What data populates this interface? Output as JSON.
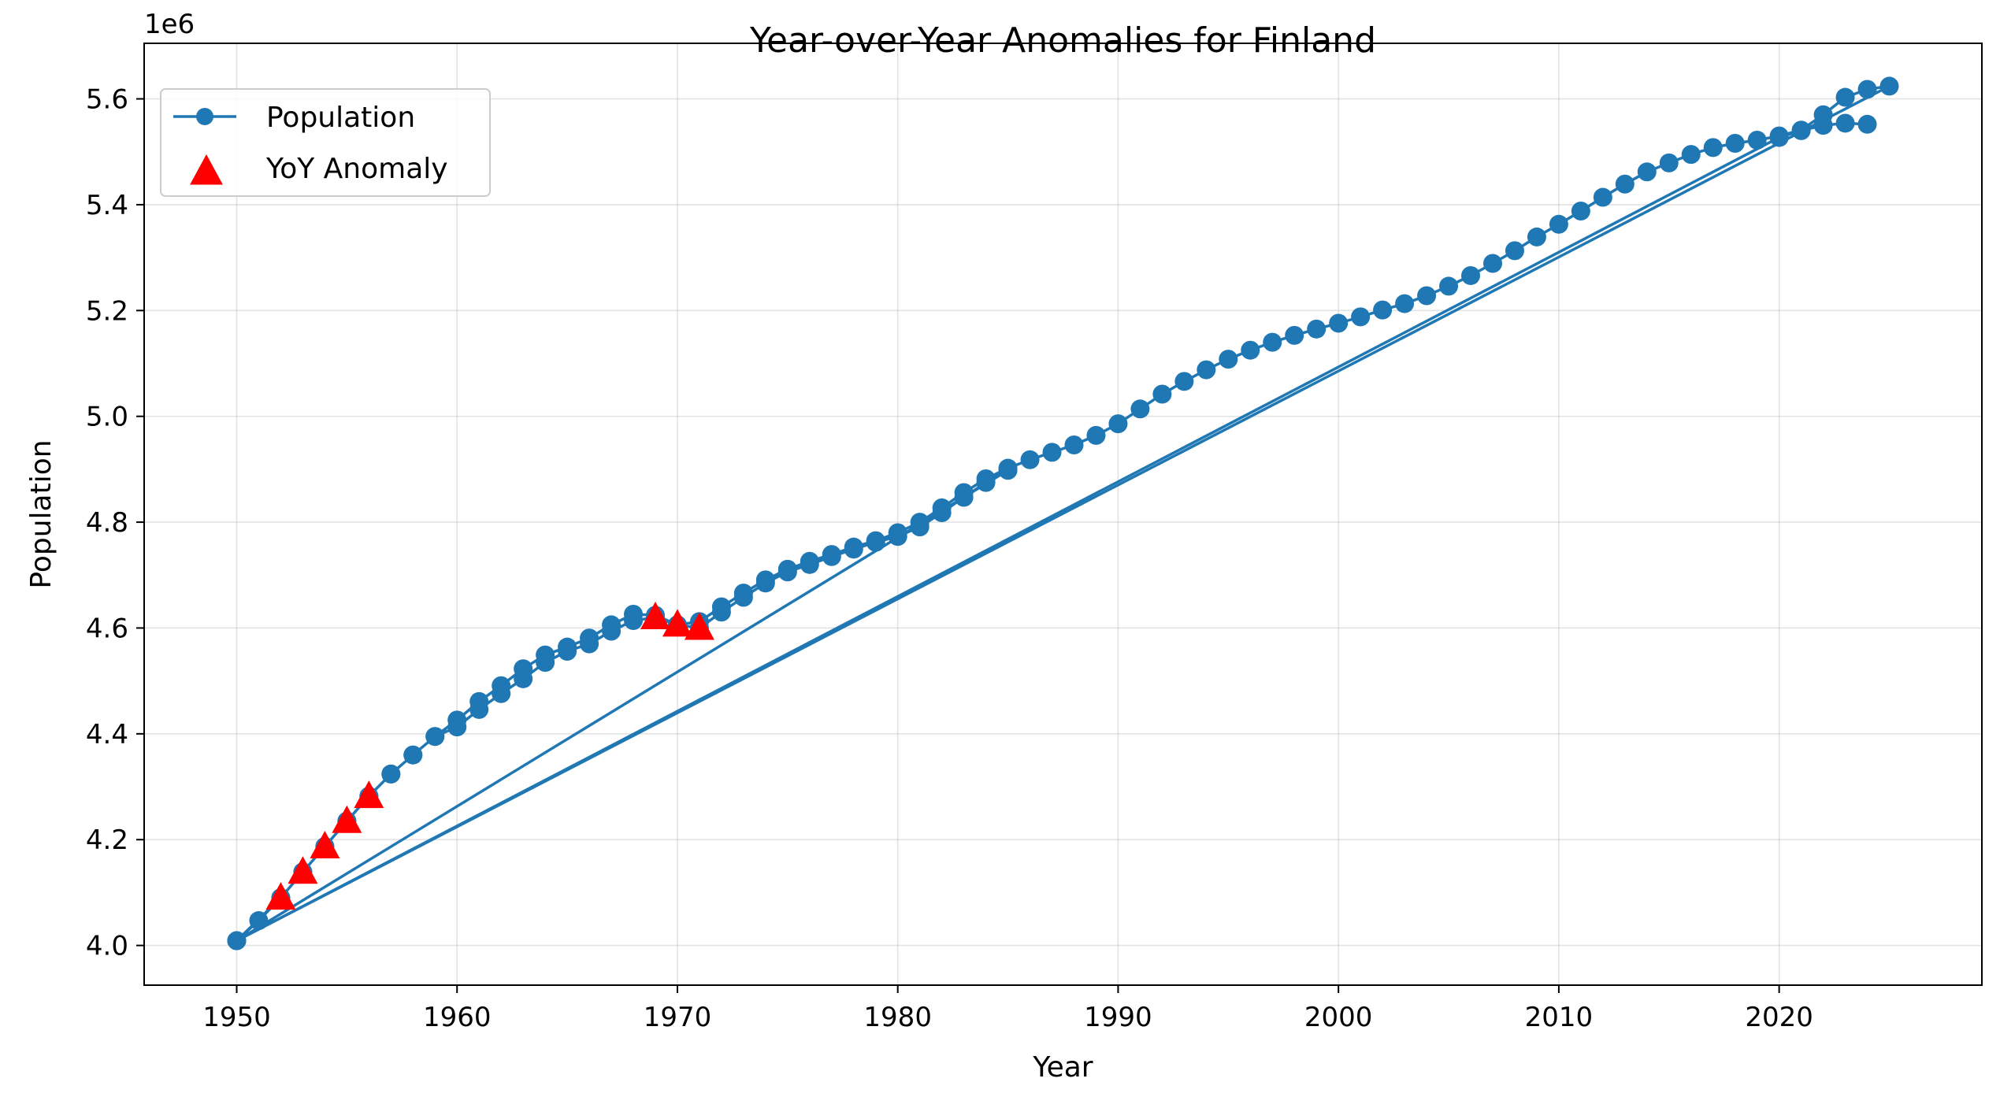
{
  "chart_data": {
    "type": "line",
    "title": "Year-over-Year Anomalies for Finland",
    "xlabel": "Year",
    "ylabel": "Population",
    "y_offset_label": "1e6",
    "xlim": [
      1945.8,
      2029.2
    ],
    "ylim": [
      3925000,
      5705000
    ],
    "grid": true,
    "legend_position": "top-left",
    "x_ticks": [
      1950,
      1960,
      1970,
      1980,
      1990,
      2000,
      2010,
      2020
    ],
    "x_tick_labels": [
      "1950",
      "1960",
      "1970",
      "1980",
      "1990",
      "2000",
      "2010",
      "2020"
    ],
    "y_ticks": [
      4000000,
      4200000,
      4400000,
      4600000,
      4800000,
      5000000,
      5200000,
      5400000,
      5600000
    ],
    "y_tick_labels": [
      "4.0",
      "4.2",
      "4.4",
      "4.6",
      "4.8",
      "5.0",
      "5.2",
      "5.4",
      "5.6"
    ],
    "series": [
      {
        "name": "Population",
        "color": "#1f77b4",
        "mode": "line+markers",
        "points": [
          [
            1950,
            4009000
          ],
          [
            1951,
            4047000
          ],
          [
            1952,
            4090000
          ],
          [
            1953,
            4139000
          ],
          [
            1954,
            4187000
          ],
          [
            1955,
            4235000
          ],
          [
            1956,
            4282000
          ],
          [
            1957,
            4324000
          ],
          [
            1958,
            4360000
          ],
          [
            1959,
            4395000
          ],
          [
            1960,
            4413000
          ],
          [
            1961,
            4446000
          ],
          [
            1962,
            4476000
          ],
          [
            1963,
            4504000
          ],
          [
            1964,
            4535000
          ],
          [
            1965,
            4556000
          ],
          [
            1966,
            4570000
          ],
          [
            1967,
            4594000
          ],
          [
            1968,
            4614000
          ],
          [
            1969,
            4620000
          ],
          [
            1970,
            4606000
          ],
          [
            1971,
            4600000
          ],
          [
            1972,
            4630000
          ],
          [
            1973,
            4658000
          ],
          [
            1974,
            4685000
          ],
          [
            1975,
            4706000
          ],
          [
            1976,
            4720000
          ],
          [
            1977,
            4735000
          ],
          [
            1978,
            4749000
          ],
          [
            1979,
            4762000
          ],
          [
            1980,
            4773000
          ],
          [
            1981,
            4791000
          ],
          [
            1982,
            4818000
          ],
          [
            1983,
            4847000
          ],
          [
            1984,
            4875000
          ],
          [
            1985,
            4898000
          ],
          [
            1950,
            4009000
          ],
          [
            1952,
            4090000
          ],
          [
            1953,
            4139000
          ],
          [
            1954,
            4187000
          ],
          [
            1955,
            4235000
          ],
          [
            1956,
            4282000
          ],
          [
            1957,
            4324000
          ],
          [
            1958,
            4360000
          ],
          [
            1959,
            4395000
          ],
          [
            1960,
            4426000
          ],
          [
            1961,
            4461000
          ],
          [
            1962,
            4491000
          ],
          [
            1963,
            4523000
          ],
          [
            1964,
            4549000
          ],
          [
            1965,
            4564000
          ],
          [
            1966,
            4581000
          ],
          [
            1967,
            4606000
          ],
          [
            1968,
            4626000
          ],
          [
            1969,
            4624000
          ],
          [
            1970,
            4606000
          ],
          [
            1971,
            4612000
          ],
          [
            1972,
            4640000
          ],
          [
            1973,
            4666000
          ],
          [
            1974,
            4691000
          ],
          [
            1975,
            4711000
          ],
          [
            1976,
            4726000
          ],
          [
            1977,
            4739000
          ],
          [
            1978,
            4753000
          ],
          [
            1979,
            4765000
          ],
          [
            1980,
            4780000
          ],
          [
            1981,
            4800000
          ],
          [
            1982,
            4827000
          ],
          [
            1983,
            4856000
          ],
          [
            1984,
            4882000
          ],
          [
            1985,
            4902000
          ],
          [
            1986,
            4918000
          ],
          [
            1987,
            4932000
          ],
          [
            1988,
            4946000
          ],
          [
            1989,
            4964000
          ],
          [
            1990,
            4986000
          ],
          [
            1991,
            5014000
          ],
          [
            1992,
            5042000
          ],
          [
            1993,
            5066000
          ],
          [
            1994,
            5088000
          ],
          [
            1995,
            5108000
          ],
          [
            1996,
            5125000
          ],
          [
            1997,
            5140000
          ],
          [
            1998,
            5153000
          ],
          [
            1999,
            5165000
          ],
          [
            2000,
            5176000
          ],
          [
            2001,
            5188000
          ],
          [
            2002,
            5201000
          ],
          [
            2003,
            5213000
          ],
          [
            2004,
            5228000
          ],
          [
            2005,
            5246000
          ],
          [
            2006,
            5266000
          ],
          [
            2007,
            5289000
          ],
          [
            2008,
            5313000
          ],
          [
            2009,
            5339000
          ],
          [
            2010,
            5363000
          ],
          [
            2011,
            5388000
          ],
          [
            2012,
            5414000
          ],
          [
            2013,
            5439000
          ],
          [
            2014,
            5462000
          ],
          [
            2015,
            5479000
          ],
          [
            2016,
            5495000
          ],
          [
            2017,
            5508000
          ],
          [
            2018,
            5516000
          ],
          [
            2019,
            5522000
          ],
          [
            2020,
            5530000
          ],
          [
            2021,
            5541000
          ],
          [
            2022,
            5570000
          ],
          [
            2023,
            5603000
          ],
          [
            2024,
            5618000
          ],
          [
            2025,
            5624000
          ],
          [
            1950,
            4009000
          ],
          [
            2020,
            5527000
          ],
          [
            2021,
            5540000
          ],
          [
            2022,
            5550000
          ],
          [
            2023,
            5554000
          ],
          [
            2024,
            5552000
          ]
        ]
      },
      {
        "name": "YoY Anomaly",
        "color": "#ff0000",
        "mode": "markers",
        "marker": "triangle",
        "points": [
          [
            1952,
            4090000
          ],
          [
            1953,
            4139000
          ],
          [
            1954,
            4187000
          ],
          [
            1955,
            4235000
          ],
          [
            1956,
            4282000
          ],
          [
            1969,
            4620000
          ],
          [
            1970,
            4606000
          ],
          [
            1971,
            4600000
          ]
        ]
      }
    ]
  }
}
